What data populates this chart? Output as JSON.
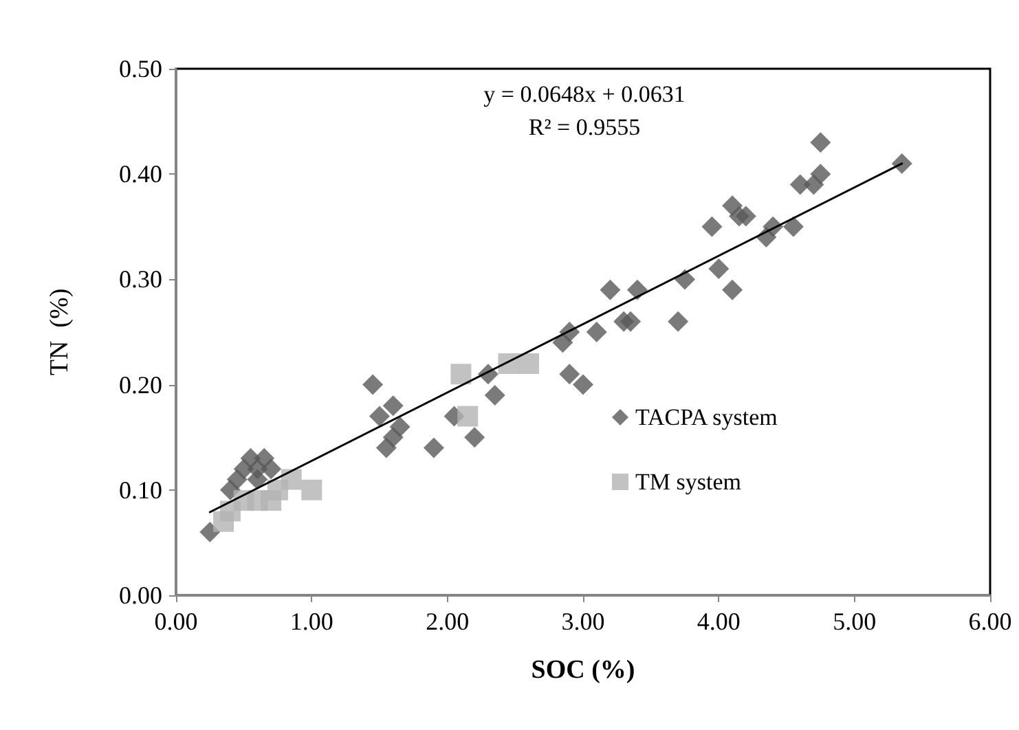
{
  "chart_data": {
    "type": "scatter",
    "xlabel": "SOC (%)",
    "ylabel": "TN  (%)",
    "annotations": [
      "y = 0.0648x + 0.0631",
      "R² = 0.9555"
    ],
    "xlim": [
      0,
      6
    ],
    "xticks": [
      {
        "value": 0,
        "label": "0.00"
      },
      {
        "value": 1,
        "label": "1.00"
      },
      {
        "value": 2,
        "label": "2.00"
      },
      {
        "value": 3,
        "label": "3.00"
      },
      {
        "value": 4,
        "label": "4.00"
      },
      {
        "value": 5,
        "label": "5.00"
      },
      {
        "value": 6,
        "label": "6.00"
      }
    ],
    "ylim": [
      0,
      0.5
    ],
    "yticks": [
      {
        "value": 0,
        "label": "0.00"
      },
      {
        "value": 0.1,
        "label": "0.10"
      },
      {
        "value": 0.2,
        "label": "0.20"
      },
      {
        "value": 0.3,
        "label": "0.30"
      },
      {
        "value": 0.4,
        "label": "0.40"
      },
      {
        "value": 0.5,
        "label": "0.50"
      }
    ],
    "grid": false,
    "legend": "center",
    "series": [
      {
        "name": "TACPA system",
        "color": "#595959",
        "marker": "diamond",
        "x": [
          0.25,
          0.4,
          0.45,
          0.5,
          0.55,
          0.6,
          0.65,
          0.7,
          0.6,
          1.45,
          1.5,
          1.55,
          1.6,
          1.6,
          1.65,
          1.9,
          2.05,
          2.2,
          2.3,
          2.35,
          2.85,
          2.9,
          2.9,
          3.0,
          3.1,
          3.2,
          3.3,
          3.35,
          3.4,
          3.7,
          3.75,
          3.95,
          4.0,
          4.1,
          4.1,
          4.15,
          4.2,
          4.35,
          4.4,
          4.55,
          4.6,
          4.7,
          4.75,
          4.75,
          5.35
        ],
        "values": [
          0.06,
          0.1,
          0.11,
          0.12,
          0.13,
          0.12,
          0.13,
          0.12,
          0.11,
          0.2,
          0.17,
          0.14,
          0.18,
          0.15,
          0.16,
          0.14,
          0.17,
          0.15,
          0.21,
          0.19,
          0.24,
          0.25,
          0.21,
          0.2,
          0.25,
          0.29,
          0.26,
          0.26,
          0.29,
          0.26,
          0.3,
          0.35,
          0.31,
          0.29,
          0.37,
          0.36,
          0.36,
          0.34,
          0.35,
          0.35,
          0.39,
          0.39,
          0.4,
          0.43,
          0.41
        ]
      },
      {
        "name": "TM system",
        "color": "#b3b3b3",
        "marker": "square",
        "x": [
          0.35,
          0.4,
          0.5,
          0.6,
          0.7,
          0.75,
          0.85,
          1.0,
          2.1,
          2.15,
          2.45,
          2.6
        ],
        "values": [
          0.07,
          0.08,
          0.09,
          0.09,
          0.09,
          0.1,
          0.11,
          0.1,
          0.21,
          0.17,
          0.22,
          0.22
        ]
      },
      {
        "type": "line",
        "color": "#000000",
        "marker": "none",
        "line_style": "solid",
        "x": [
          0.25,
          5.35
        ],
        "values": [
          0.079,
          0.41
        ]
      }
    ]
  }
}
